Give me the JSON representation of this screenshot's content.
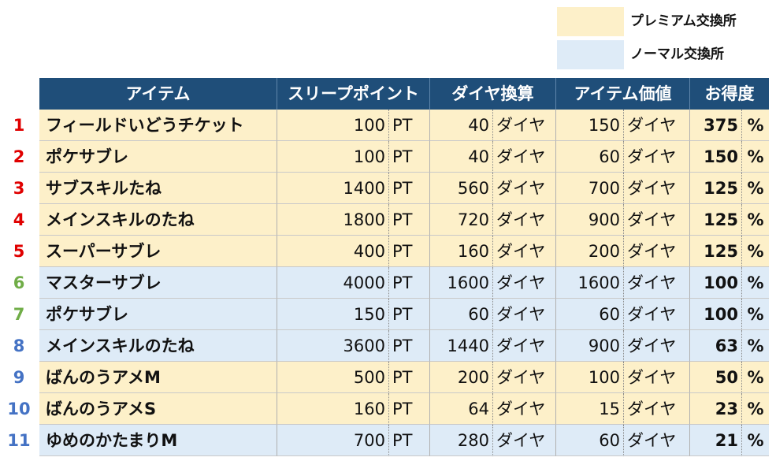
{
  "legend": {
    "premium": {
      "label": "プレミアム交換所",
      "color": "#fdf0c9"
    },
    "normal": {
      "label": "ノーマル交換所",
      "color": "#deebf7"
    }
  },
  "header": {
    "item": "アイテム",
    "sleep_point": "スリープポイント",
    "diamond": "ダイヤ換算",
    "value": "アイテム価値",
    "ratio": "お得度"
  },
  "rank_colors": {
    "red": "#e00000",
    "green": "#70ad47",
    "blue": "#4472c4"
  },
  "rows": [
    {
      "rank": "1",
      "rank_color": "#e00000",
      "type": "premium",
      "name": "フィールドいどうチケット",
      "sp": "100",
      "sp_unit": "PT",
      "dia": "40",
      "dia_unit": "ダイヤ",
      "val": "150",
      "val_unit": "ダイヤ",
      "ratio": "375",
      "pct": "%"
    },
    {
      "rank": "2",
      "rank_color": "#e00000",
      "type": "premium",
      "name": "ポケサブレ",
      "sp": "100",
      "sp_unit": "PT",
      "dia": "40",
      "dia_unit": "ダイヤ",
      "val": "60",
      "val_unit": "ダイヤ",
      "ratio": "150",
      "pct": "%"
    },
    {
      "rank": "3",
      "rank_color": "#e00000",
      "type": "premium",
      "name": "サブスキルたね",
      "sp": "1400",
      "sp_unit": "PT",
      "dia": "560",
      "dia_unit": "ダイヤ",
      "val": "700",
      "val_unit": "ダイヤ",
      "ratio": "125",
      "pct": "%"
    },
    {
      "rank": "4",
      "rank_color": "#e00000",
      "type": "premium",
      "name": "メインスキルのたね",
      "sp": "1800",
      "sp_unit": "PT",
      "dia": "720",
      "dia_unit": "ダイヤ",
      "val": "900",
      "val_unit": "ダイヤ",
      "ratio": "125",
      "pct": "%"
    },
    {
      "rank": "5",
      "rank_color": "#e00000",
      "type": "premium",
      "name": "スーパーサブレ",
      "sp": "400",
      "sp_unit": "PT",
      "dia": "160",
      "dia_unit": "ダイヤ",
      "val": "200",
      "val_unit": "ダイヤ",
      "ratio": "125",
      "pct": "%"
    },
    {
      "rank": "6",
      "rank_color": "#70ad47",
      "type": "normal",
      "name": "マスターサブレ",
      "sp": "4000",
      "sp_unit": "PT",
      "dia": "1600",
      "dia_unit": "ダイヤ",
      "val": "1600",
      "val_unit": "ダイヤ",
      "ratio": "100",
      "pct": "%"
    },
    {
      "rank": "7",
      "rank_color": "#70ad47",
      "type": "normal",
      "name": "ポケサブレ",
      "sp": "150",
      "sp_unit": "PT",
      "dia": "60",
      "dia_unit": "ダイヤ",
      "val": "60",
      "val_unit": "ダイヤ",
      "ratio": "100",
      "pct": "%"
    },
    {
      "rank": "8",
      "rank_color": "#4472c4",
      "type": "normal",
      "name": "メインスキルのたね",
      "sp": "3600",
      "sp_unit": "PT",
      "dia": "1440",
      "dia_unit": "ダイヤ",
      "val": "900",
      "val_unit": "ダイヤ",
      "ratio": "63",
      "pct": "%"
    },
    {
      "rank": "9",
      "rank_color": "#4472c4",
      "type": "premium",
      "name": "ばんのうアメM",
      "sp": "500",
      "sp_unit": "PT",
      "dia": "200",
      "dia_unit": "ダイヤ",
      "val": "100",
      "val_unit": "ダイヤ",
      "ratio": "50",
      "pct": "%"
    },
    {
      "rank": "10",
      "rank_color": "#4472c4",
      "type": "premium",
      "name": "ばんのうアメS",
      "sp": "160",
      "sp_unit": "PT",
      "dia": "64",
      "dia_unit": "ダイヤ",
      "val": "15",
      "val_unit": "ダイヤ",
      "ratio": "23",
      "pct": "%"
    },
    {
      "rank": "11",
      "rank_color": "#4472c4",
      "type": "normal",
      "name": "ゆめのかたまりM",
      "sp": "700",
      "sp_unit": "PT",
      "dia": "280",
      "dia_unit": "ダイヤ",
      "val": "60",
      "val_unit": "ダイヤ",
      "ratio": "21",
      "pct": "%"
    }
  ]
}
